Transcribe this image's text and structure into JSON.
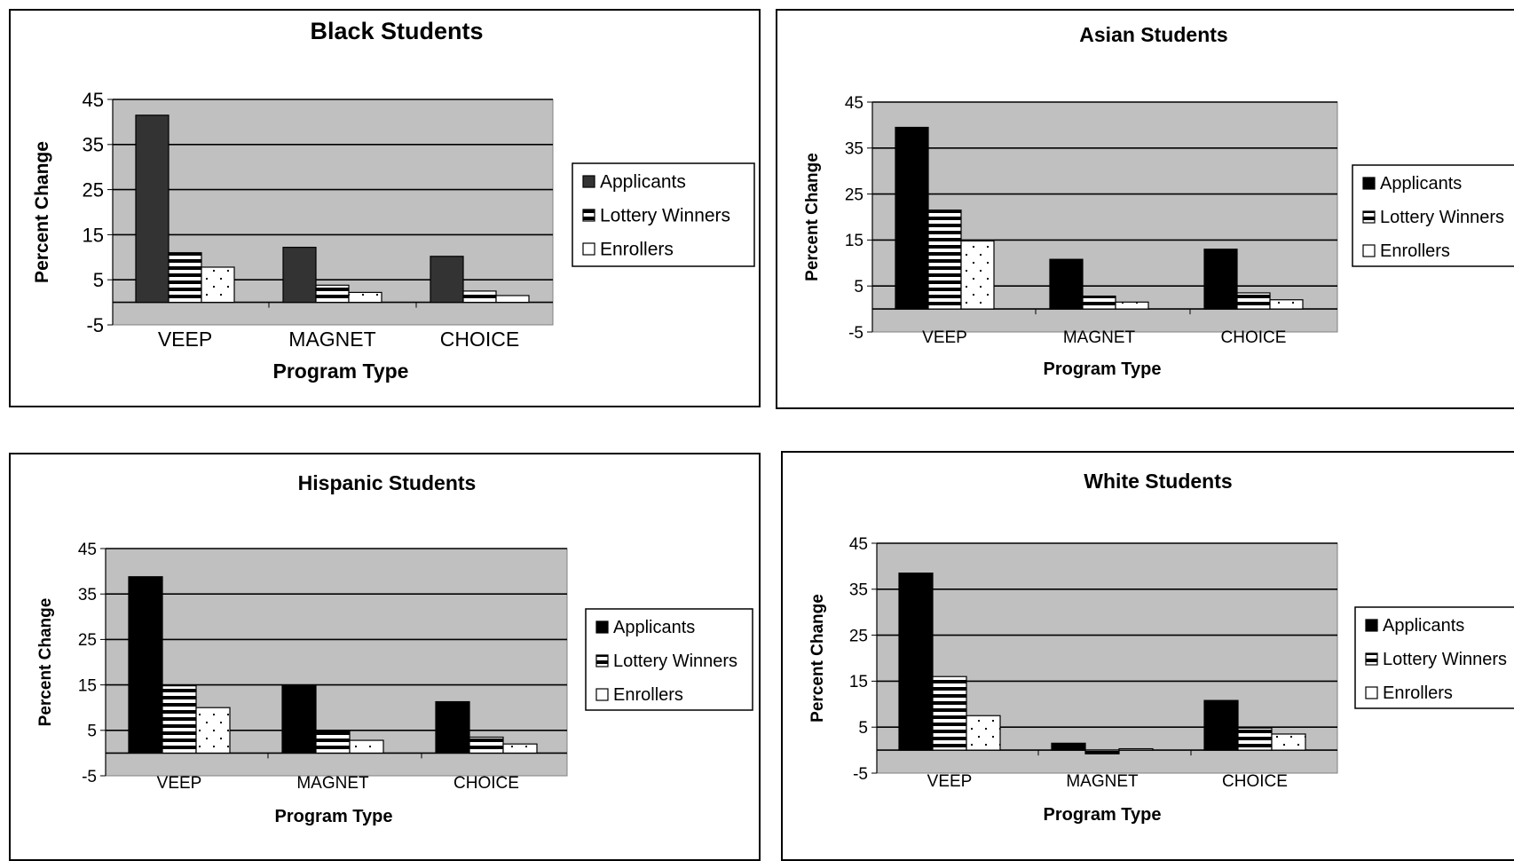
{
  "chart_data": [
    {
      "type": "bar",
      "title": "Black Students",
      "xlabel": "Program Type",
      "ylabel": "Percent Change",
      "categories": [
        "VEEP",
        "MAGNET",
        "CHOICE"
      ],
      "ylim": [
        -5,
        45
      ],
      "yticks": [
        "45",
        "35",
        "25",
        "15",
        "5",
        "-5"
      ],
      "grid": true,
      "legend_position": "right",
      "series": [
        {
          "name": "Applicants",
          "values": [
            41.5,
            12.2,
            10.2
          ],
          "pattern": "solid-dark"
        },
        {
          "name": "Lottery Winners",
          "values": [
            11.0,
            3.8,
            2.5
          ],
          "pattern": "stripes"
        },
        {
          "name": "Enrollers",
          "values": [
            7.8,
            2.2,
            1.5
          ],
          "pattern": "dots"
        }
      ]
    },
    {
      "type": "bar",
      "title": "Asian Students",
      "xlabel": "Program Type",
      "ylabel": "Percent Change",
      "categories": [
        "VEEP",
        "MAGNET",
        "CHOICE"
      ],
      "ylim": [
        -5,
        45
      ],
      "yticks": [
        "45",
        "35",
        "25",
        "15",
        "5",
        "-5"
      ],
      "grid": true,
      "legend_position": "right",
      "series": [
        {
          "name": "Applicants",
          "values": [
            39.5,
            10.8,
            13.0
          ],
          "pattern": "solid"
        },
        {
          "name": "Lottery Winners",
          "values": [
            21.5,
            2.8,
            3.5
          ],
          "pattern": "stripes"
        },
        {
          "name": "Enrollers",
          "values": [
            14.8,
            1.5,
            2.0
          ],
          "pattern": "dots"
        }
      ]
    },
    {
      "type": "bar",
      "title": "Hispanic Students",
      "xlabel": "Program Type",
      "ylabel": "Percent Change",
      "categories": [
        "VEEP",
        "MAGNET",
        "CHOICE"
      ],
      "ylim": [
        -5,
        45
      ],
      "yticks": [
        "45",
        "35",
        "25",
        "15",
        "5",
        "-5"
      ],
      "grid": true,
      "legend_position": "right",
      "series": [
        {
          "name": "Applicants",
          "values": [
            38.8,
            15.0,
            11.3
          ],
          "pattern": "solid"
        },
        {
          "name": "Lottery Winners",
          "values": [
            14.8,
            4.8,
            3.5
          ],
          "pattern": "stripes"
        },
        {
          "name": "Enrollers",
          "values": [
            10.0,
            2.8,
            2.0
          ],
          "pattern": "dots"
        }
      ]
    },
    {
      "type": "bar",
      "title": "White Students",
      "xlabel": "Program Type",
      "ylabel": "Percent Change",
      "categories": [
        "VEEP",
        "MAGNET",
        "CHOICE"
      ],
      "ylim": [
        -5,
        45
      ],
      "yticks": [
        "45",
        "35",
        "25",
        "15",
        "5",
        "-5"
      ],
      "grid": true,
      "legend_position": "right",
      "series": [
        {
          "name": "Applicants",
          "values": [
            38.5,
            1.5,
            10.8
          ],
          "pattern": "solid"
        },
        {
          "name": "Lottery Winners",
          "values": [
            16.0,
            -0.8,
            4.8
          ],
          "pattern": "stripes"
        },
        {
          "name": "Enrollers",
          "values": [
            7.5,
            0.3,
            3.5
          ],
          "pattern": "dots"
        }
      ]
    }
  ],
  "colors": {
    "plot_area": "#c0c0c0",
    "bar_solid": "#000000",
    "bar_solid_dark": "#333333",
    "outline": "#000000",
    "page": "#ffffff"
  }
}
